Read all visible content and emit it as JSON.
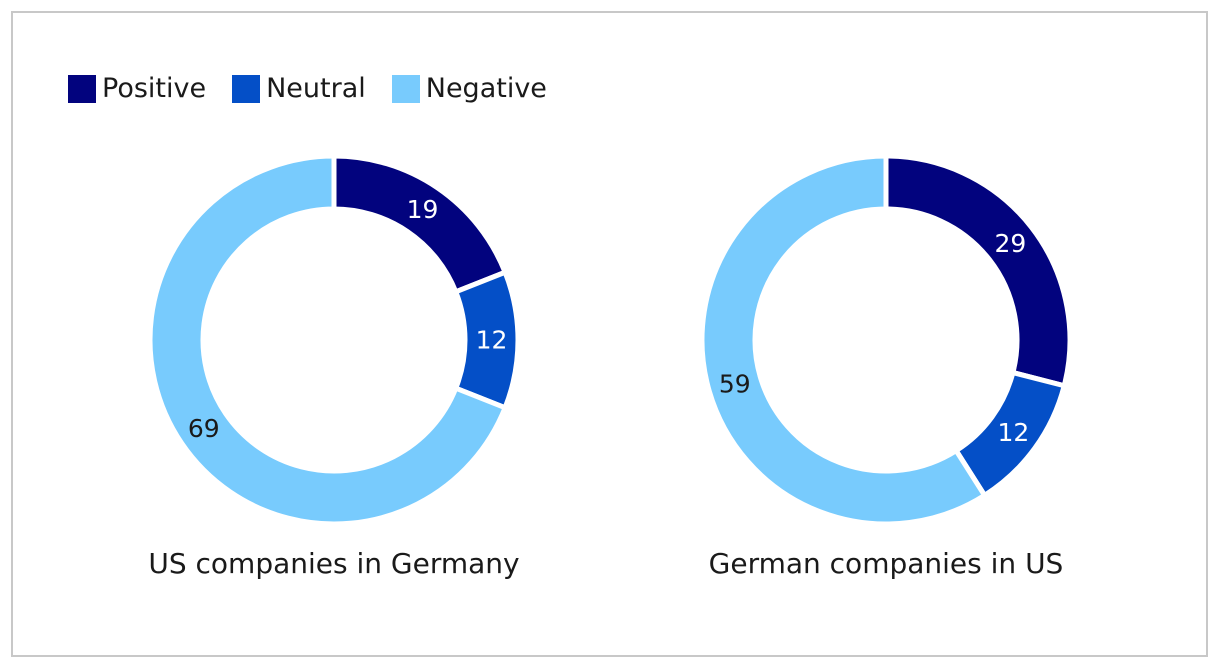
{
  "chart_data": {
    "type": "pie",
    "legend_position": "top-left",
    "series": [
      {
        "name": "Positive",
        "color": "#02037e"
      },
      {
        "name": "Neutral",
        "color": "#044fc7"
      },
      {
        "name": "Negative",
        "color": "#78cbfd"
      }
    ],
    "charts": [
      {
        "title": "US companies in Germany",
        "values": [
          19,
          12,
          69
        ],
        "labels": [
          "19",
          "12",
          "69"
        ]
      },
      {
        "title": "German companies in US",
        "values": [
          29,
          12,
          59
        ],
        "labels": [
          "29",
          "12",
          "59"
        ]
      }
    ]
  }
}
